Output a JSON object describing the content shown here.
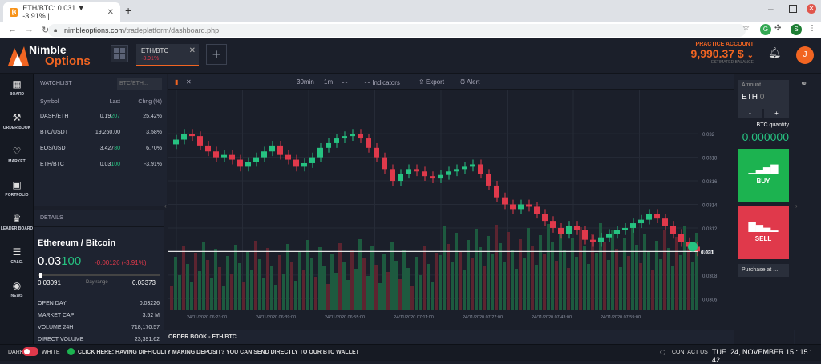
{
  "browser": {
    "tab_title": "ETH/BTC: 0.031 ▼ -3.91% |",
    "url_host": "nimbleoptions.com",
    "url_path": "/tradeplatform/dashboard.php",
    "ext_initial": "G",
    "profile_initial": "S"
  },
  "app": {
    "logo_line1": "Nimble",
    "logo_line2": "Options",
    "pair_tab": {
      "name": "ETH/BTC",
      "change": "-3.91%"
    },
    "account_label": "PRACTICE ACCOUNT",
    "balance": "9,990.37 $",
    "balance_sub": "ESTIMATED BALANCE",
    "avatar_initial": "J"
  },
  "sidebar": {
    "items": [
      {
        "label": "BOARD",
        "icon": "board-icon"
      },
      {
        "label": "ORDER BOOK",
        "icon": "gavel-icon"
      },
      {
        "label": "MARKET",
        "icon": "heartbeat-icon"
      },
      {
        "label": "PORTFOLIO",
        "icon": "briefcase-icon"
      },
      {
        "label": "LEADER BOARD",
        "icon": "trophy-icon"
      },
      {
        "label": "CALC.",
        "icon": "calculator-icon"
      },
      {
        "label": "NEWS",
        "icon": "news-icon"
      }
    ]
  },
  "watchlist": {
    "title": "WATCHLIST",
    "search_placeholder": "BTC/ETH...",
    "columns": [
      "Symbol",
      "Last",
      "Chng (%)"
    ],
    "rows": [
      {
        "symbol": "DASH/ETH",
        "last_a": "0.19",
        "last_b": "207",
        "change": "25.42%"
      },
      {
        "symbol": "BTC/USDT",
        "last_a": "19,260.00",
        "last_b": "",
        "change": "3.58%"
      },
      {
        "symbol": "EOS/USDT",
        "last_a": "3.427",
        "last_b": "80",
        "change": "6.70%"
      },
      {
        "symbol": "ETH/BTC",
        "last_a": "0.03",
        "last_b": "100",
        "change": "-3.91%"
      }
    ]
  },
  "details": {
    "title": "DETAILS",
    "name": "Ethereum / Bitcoin",
    "price_a": "0.03",
    "price_b": "100",
    "change": "-0.00126 (-3.91%)",
    "range_low": "0.03091",
    "range_label": "Day range",
    "range_high": "0.03373",
    "stats": [
      {
        "key": "OPEN DAY",
        "value": "0.03226"
      },
      {
        "key": "MARKET CAP",
        "value": "3.52 M"
      },
      {
        "key": "VOLUME 24H",
        "value": "718,170.57"
      },
      {
        "key": "DIRECT VOLUME",
        "value": "23,391.62"
      }
    ]
  },
  "toolbar": {
    "interval1": "30min",
    "interval2": "1m",
    "indicators": "Indicators",
    "export": "Export",
    "alert": "Alert"
  },
  "chart_data": {
    "type": "candlestick",
    "y_ticks": [
      "0.032",
      "0.0318",
      "0.0316",
      "0.0314",
      "0.0312",
      "0.031",
      "0.0308",
      "0.0306"
    ],
    "x_ticks": [
      "24/11/2020 06:23:00",
      "24/11/2020 06:39:00",
      "24/11/2020 06:55:00",
      "24/11/2020 07:11:00",
      "24/11/2020 07:27:00",
      "24/11/2020 07:43:00",
      "24/11/2020 07:59:00"
    ],
    "current_price_label": "0.031",
    "ylim": [
      0.0305,
      0.0323
    ],
    "closes": [
      0.03195,
      0.032,
      0.03198,
      0.0319,
      0.03185,
      0.0318,
      0.03182,
      0.03178,
      0.03172,
      0.03176,
      0.0318,
      0.03185,
      0.0319,
      0.03182,
      0.03178,
      0.03172,
      0.03175,
      0.0318,
      0.03188,
      0.03192,
      0.03196,
      0.03198,
      0.032,
      0.03196,
      0.03188,
      0.0318,
      0.0317,
      0.0316,
      0.03166,
      0.0317,
      0.03168,
      0.03164,
      0.03162,
      0.03165,
      0.03168,
      0.0317,
      0.03172,
      0.03174,
      0.03166,
      0.03156,
      0.03146,
      0.0314,
      0.03136,
      0.0314,
      0.03138,
      0.03132,
      0.03126,
      0.0312,
      0.03115,
      0.03122,
      0.03118,
      0.0311,
      0.03108,
      0.03112,
      0.03115,
      0.03118,
      0.0312,
      0.03124,
      0.03127,
      0.03132,
      0.03128,
      0.03122,
      0.03115,
      0.03108,
      0.03104,
      0.031
    ]
  },
  "order_book_title": "ORDER BOOK - ETH/BTC",
  "trade": {
    "amount_label": "Amount",
    "amount_currency": "ETH",
    "amount_value": "0",
    "minus": "-",
    "plus": "+",
    "btc_quantity_label": "BTC quantity",
    "btc_quantity": "0.000000",
    "buy": "BUY",
    "sell": "SELL",
    "purchase_label": "Purchase at ..."
  },
  "footer": {
    "dark": "DARK",
    "white": "WHITE",
    "notice": "CLICK HERE: HAVING DIFFICULTY MAKING DEPOSIT? YOU CAN SEND DIRECTLY TO OUR BTC WALLET",
    "contact": "CONTACT US",
    "datetime": "TUE. 24, NOVEMBER 15 : 15 : 42"
  },
  "colors": {
    "accent": "#f26522",
    "up": "#26c281",
    "down": "#e0394b",
    "buy": "#1cb350"
  }
}
